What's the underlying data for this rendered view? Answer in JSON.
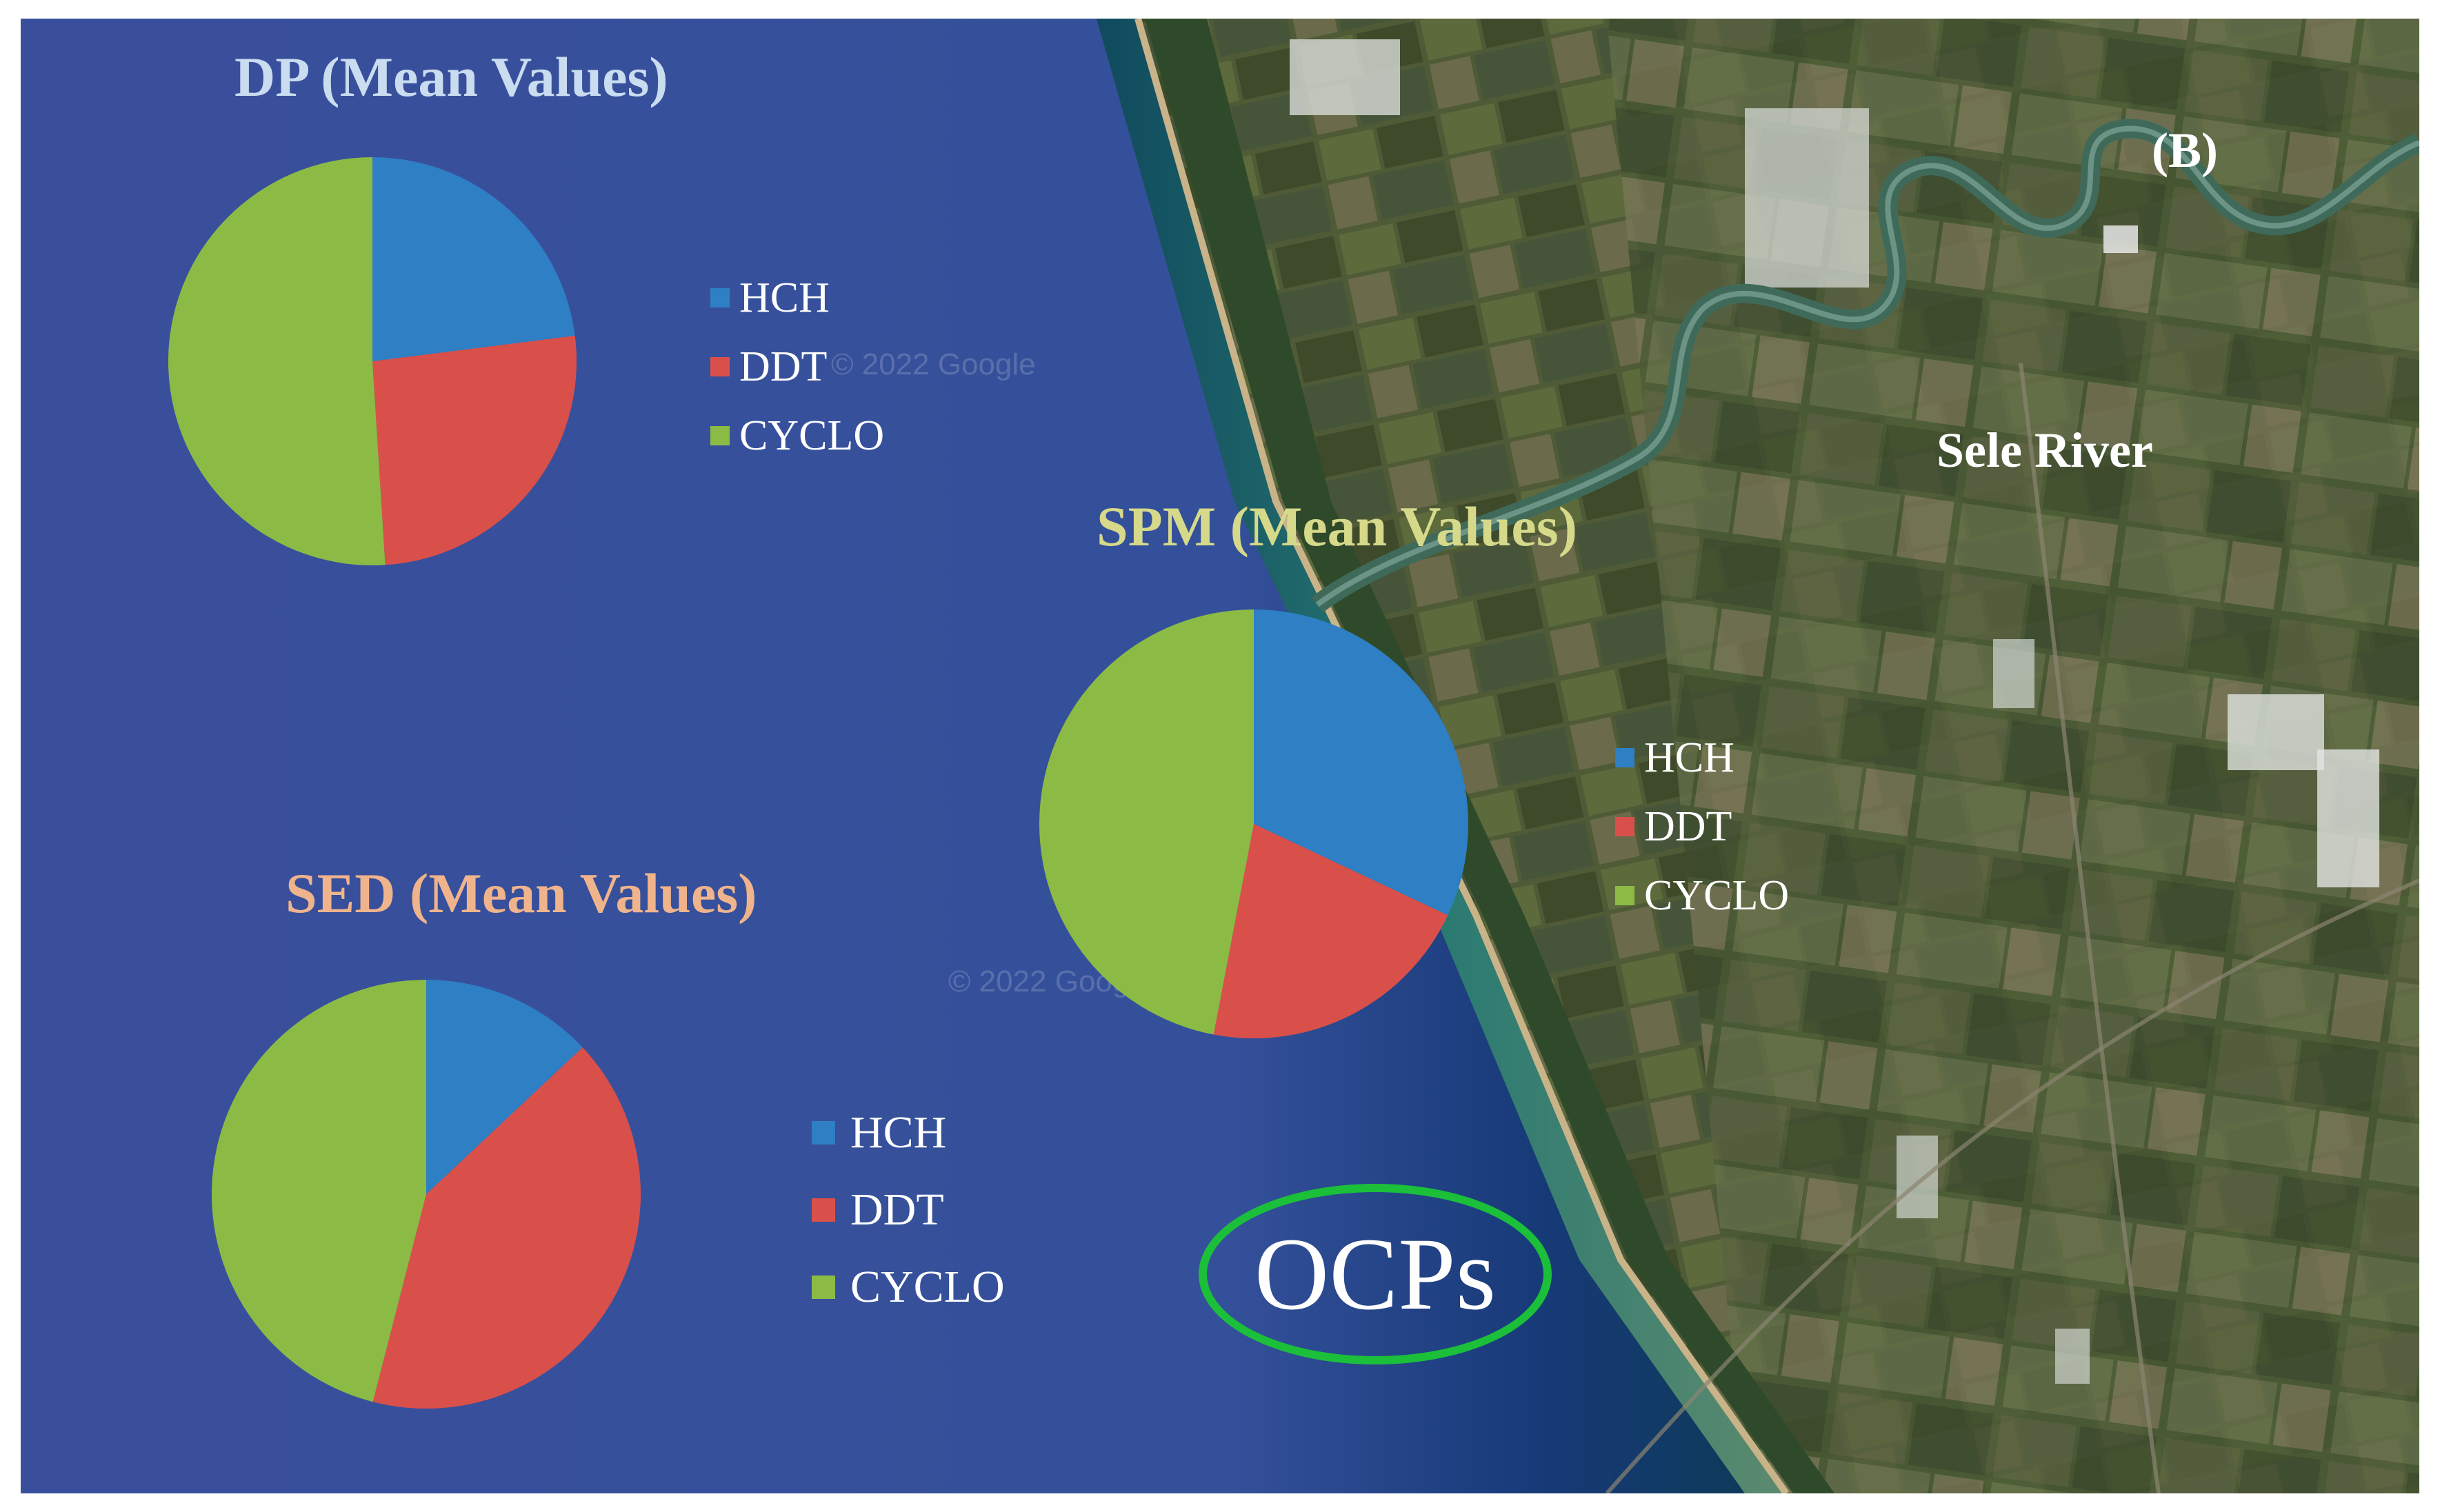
{
  "figure_label": "(B)",
  "river_label": "Sele River",
  "watermarks": [
    "© 2022 Google",
    "© 2022 Google"
  ],
  "ocps_label": "OCPs",
  "colors": {
    "HCH": "#2e7fc4",
    "DDT": "#d9504a",
    "CYCLO": "#8cbb45",
    "ocps_ring": "#1bbf3a",
    "dp_title": "#c9dcf0",
    "spm_title": "#d6d98a",
    "sed_title": "#f0b48c"
  },
  "chart_data": [
    {
      "type": "pie",
      "title": "DP (Mean Values)",
      "categories": [
        "HCH",
        "DDT",
        "CYCLO"
      ],
      "values": [
        23,
        26,
        51
      ],
      "legend": [
        "HCH",
        "DDT",
        "CYCLO"
      ]
    },
    {
      "type": "pie",
      "title": "SPM (Mean Values)",
      "categories": [
        "HCH",
        "DDT",
        "CYCLO"
      ],
      "values": [
        32,
        21,
        47
      ],
      "legend": [
        "HCH",
        "DDT",
        "CYCLO"
      ]
    },
    {
      "type": "pie",
      "title": "SED (Mean Values)",
      "categories": [
        "HCH",
        "DDT",
        "CYCLO"
      ],
      "values": [
        13,
        41,
        46
      ],
      "legend": [
        "HCH",
        "DDT",
        "CYCLO"
      ]
    }
  ]
}
